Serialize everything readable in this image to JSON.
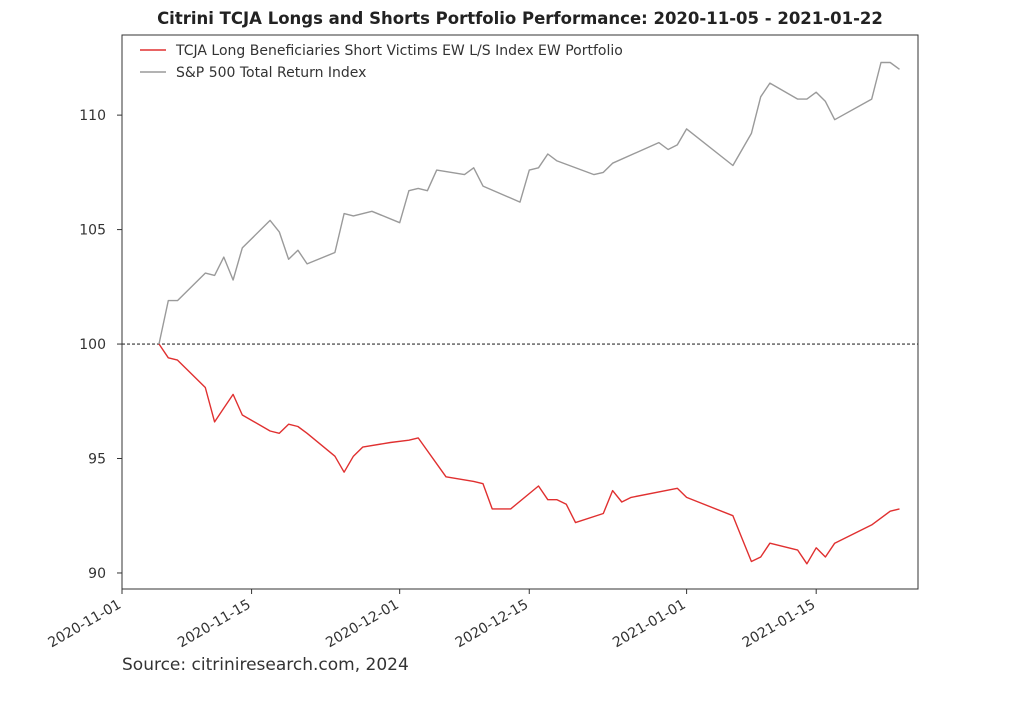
{
  "chart_data": {
    "type": "line",
    "title": "Citrini TCJA Longs and Shorts Portfolio Performance: 2020-11-05 - 2021-01-22",
    "xlabel": "",
    "ylabel": "",
    "xlim": [
      "2020-11-01",
      "2021-01-26"
    ],
    "ylim": [
      89.3,
      113.5
    ],
    "x_ticks": [
      "2020-11-01",
      "2020-11-15",
      "2020-12-01",
      "2020-12-15",
      "2021-01-01",
      "2021-01-15"
    ],
    "y_ticks": [
      90,
      95,
      100,
      105,
      110
    ],
    "grid": false,
    "legend_position": "top-left",
    "reference_line": {
      "y": 100,
      "style": "dashed"
    },
    "source": "Source: citriniresearch.com, 2024",
    "series": [
      {
        "name": "TCJA Long Beneficiaries Short Victims EW L/S Index EW Portfolio",
        "color": "#e03030",
        "points": [
          [
            "2020-11-05",
            100.0
          ],
          [
            "2020-11-06",
            99.4
          ],
          [
            "2020-11-07",
            99.3
          ],
          [
            "2020-11-10",
            98.1
          ],
          [
            "2020-11-11",
            96.6
          ],
          [
            "2020-11-12",
            97.2
          ],
          [
            "2020-11-13",
            97.8
          ],
          [
            "2020-11-14",
            96.9
          ],
          [
            "2020-11-17",
            96.2
          ],
          [
            "2020-11-18",
            96.1
          ],
          [
            "2020-11-19",
            96.5
          ],
          [
            "2020-11-20",
            96.4
          ],
          [
            "2020-11-21",
            96.1
          ],
          [
            "2020-11-24",
            95.1
          ],
          [
            "2020-11-25",
            94.4
          ],
          [
            "2020-11-26",
            95.1
          ],
          [
            "2020-11-27",
            95.5
          ],
          [
            "2020-11-30",
            95.7
          ],
          [
            "2020-12-02",
            95.8
          ],
          [
            "2020-12-03",
            95.9
          ],
          [
            "2020-12-06",
            94.2
          ],
          [
            "2020-12-09",
            94.0
          ],
          [
            "2020-12-10",
            93.9
          ],
          [
            "2020-12-11",
            92.8
          ],
          [
            "2020-12-13",
            92.8
          ],
          [
            "2020-12-16",
            93.8
          ],
          [
            "2020-12-17",
            93.2
          ],
          [
            "2020-12-18",
            93.2
          ],
          [
            "2020-12-19",
            93.0
          ],
          [
            "2020-12-20",
            92.2
          ],
          [
            "2020-12-23",
            92.6
          ],
          [
            "2020-12-24",
            93.6
          ],
          [
            "2020-12-25",
            93.1
          ],
          [
            "2020-12-26",
            93.3
          ],
          [
            "2020-12-31",
            93.7
          ],
          [
            "2021-01-01",
            93.3
          ],
          [
            "2021-01-06",
            92.5
          ],
          [
            "2021-01-07",
            91.5
          ],
          [
            "2021-01-08",
            90.5
          ],
          [
            "2021-01-09",
            90.7
          ],
          [
            "2021-01-10",
            91.3
          ],
          [
            "2021-01-13",
            91.0
          ],
          [
            "2021-01-14",
            90.4
          ],
          [
            "2021-01-15",
            91.1
          ],
          [
            "2021-01-16",
            90.7
          ],
          [
            "2021-01-17",
            91.3
          ],
          [
            "2021-01-21",
            92.1
          ],
          [
            "2021-01-23",
            92.7
          ],
          [
            "2021-01-24",
            92.8
          ]
        ]
      },
      {
        "name": "S&P 500 Total Return Index",
        "color": "#9a9a9a",
        "points": [
          [
            "2020-11-05",
            100.0
          ],
          [
            "2020-11-06",
            101.9
          ],
          [
            "2020-11-07",
            101.9
          ],
          [
            "2020-11-10",
            103.1
          ],
          [
            "2020-11-11",
            103.0
          ],
          [
            "2020-11-12",
            103.8
          ],
          [
            "2020-11-13",
            102.8
          ],
          [
            "2020-11-14",
            104.2
          ],
          [
            "2020-11-17",
            105.4
          ],
          [
            "2020-11-18",
            104.9
          ],
          [
            "2020-11-19",
            103.7
          ],
          [
            "2020-11-20",
            104.1
          ],
          [
            "2020-11-21",
            103.5
          ],
          [
            "2020-11-24",
            104.0
          ],
          [
            "2020-11-25",
            105.7
          ],
          [
            "2020-11-26",
            105.6
          ],
          [
            "2020-11-28",
            105.8
          ],
          [
            "2020-12-01",
            105.3
          ],
          [
            "2020-12-02",
            106.7
          ],
          [
            "2020-12-03",
            106.8
          ],
          [
            "2020-12-04",
            106.7
          ],
          [
            "2020-12-05",
            107.6
          ],
          [
            "2020-12-08",
            107.4
          ],
          [
            "2020-12-09",
            107.7
          ],
          [
            "2020-12-10",
            106.9
          ],
          [
            "2020-12-14",
            106.2
          ],
          [
            "2020-12-15",
            107.6
          ],
          [
            "2020-12-16",
            107.7
          ],
          [
            "2020-12-17",
            108.3
          ],
          [
            "2020-12-18",
            108.0
          ],
          [
            "2020-12-22",
            107.4
          ],
          [
            "2020-12-23",
            107.5
          ],
          [
            "2020-12-24",
            107.9
          ],
          [
            "2020-12-29",
            108.8
          ],
          [
            "2020-12-30",
            108.5
          ],
          [
            "2020-12-31",
            108.7
          ],
          [
            "2021-01-01",
            109.4
          ],
          [
            "2021-01-06",
            107.8
          ],
          [
            "2021-01-08",
            109.2
          ],
          [
            "2021-01-09",
            110.8
          ],
          [
            "2021-01-10",
            111.4
          ],
          [
            "2021-01-13",
            110.7
          ],
          [
            "2021-01-14",
            110.7
          ],
          [
            "2021-01-15",
            111.0
          ],
          [
            "2021-01-16",
            110.6
          ],
          [
            "2021-01-17",
            109.8
          ],
          [
            "2021-01-21",
            110.7
          ],
          [
            "2021-01-22",
            112.3
          ],
          [
            "2021-01-23",
            112.3
          ],
          [
            "2021-01-24",
            112.0
          ]
        ]
      }
    ]
  }
}
